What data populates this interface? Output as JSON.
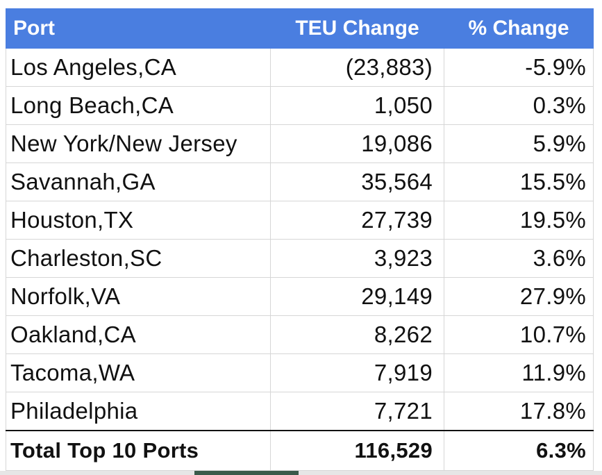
{
  "table": {
    "headers": [
      "Port",
      "TEU Change",
      "% Change"
    ],
    "rows": [
      {
        "port": "Los Angeles,CA",
        "teu": "(23,883)",
        "pct": "-5.9%"
      },
      {
        "port": "Long Beach,CA",
        "teu": "1,050",
        "pct": "0.3%"
      },
      {
        "port": "New York/New Jersey",
        "teu": "19,086",
        "pct": "5.9%"
      },
      {
        "port": "Savannah,GA",
        "teu": "35,564",
        "pct": "15.5%"
      },
      {
        "port": "Houston,TX",
        "teu": "27,739",
        "pct": "19.5%"
      },
      {
        "port": "Charleston,SC",
        "teu": "3,923",
        "pct": "3.6%"
      },
      {
        "port": "Norfolk,VA",
        "teu": "29,149",
        "pct": "27.9%"
      },
      {
        "port": "Oakland,CA",
        "teu": "8,262",
        "pct": "10.7%"
      },
      {
        "port": "Tacoma,WA",
        "teu": "7,919",
        "pct": "11.9%"
      },
      {
        "port": "Philadelphia",
        "teu": "7,721",
        "pct": "17.8%"
      }
    ],
    "total": {
      "port": "Total Top 10 Ports",
      "teu": "116,529",
      "pct": "6.3%"
    }
  },
  "colors": {
    "header_bg": "#4a7ee0",
    "header_text": "#ffffff",
    "grid": "#d6d6d6"
  }
}
